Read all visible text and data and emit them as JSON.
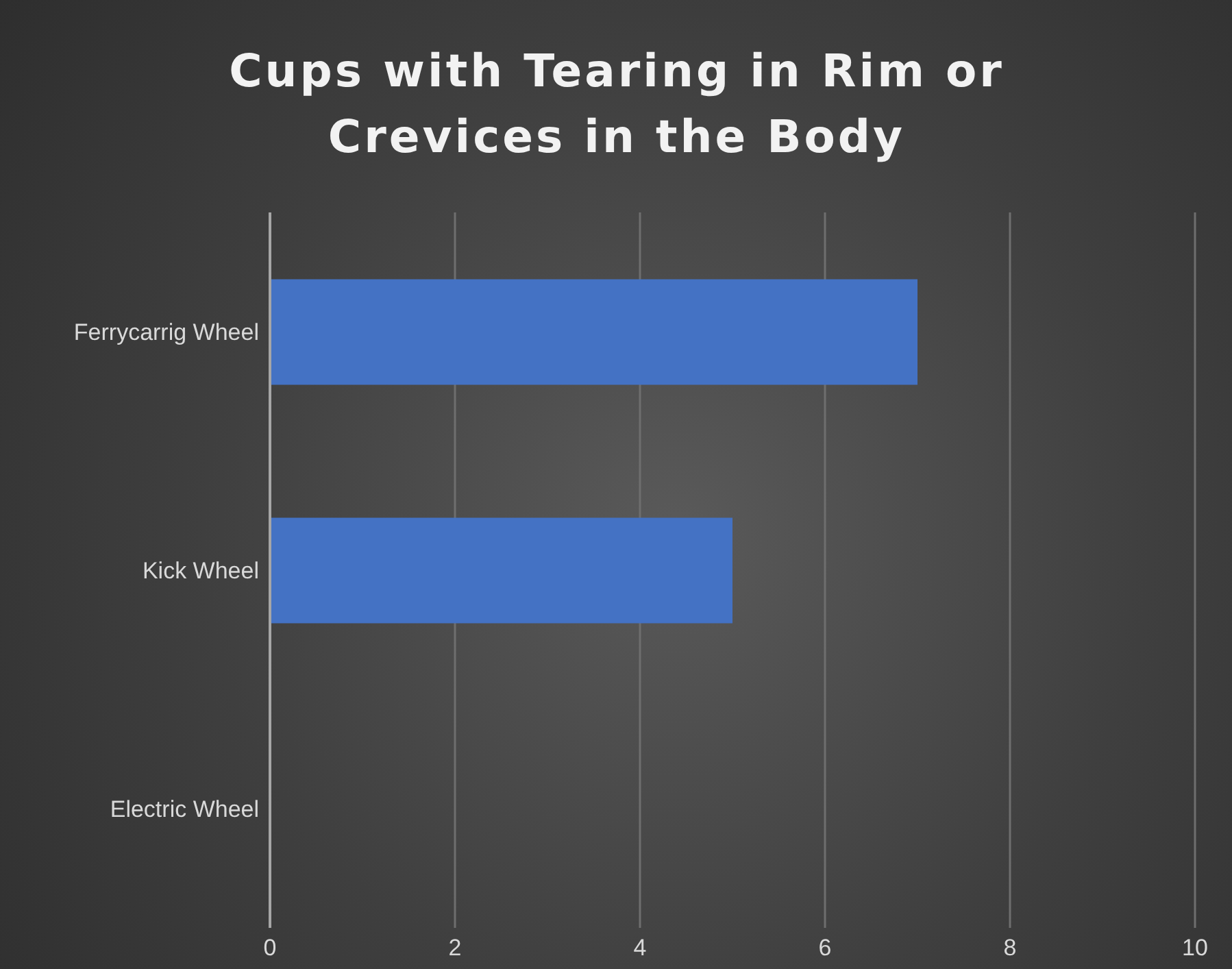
{
  "chart_data": {
    "type": "bar",
    "orientation": "horizontal",
    "title": "Cups with Tearing in Rim or Crevices in the Body",
    "categories": [
      "Ferrycarrig Wheel",
      "Kick Wheel",
      "Electric Wheel"
    ],
    "values": [
      7,
      5,
      0
    ],
    "color": "#4472c4",
    "xlim": [
      0,
      10
    ],
    "xticks": [
      0,
      2,
      4,
      6,
      8,
      10
    ],
    "grid": "x"
  }
}
